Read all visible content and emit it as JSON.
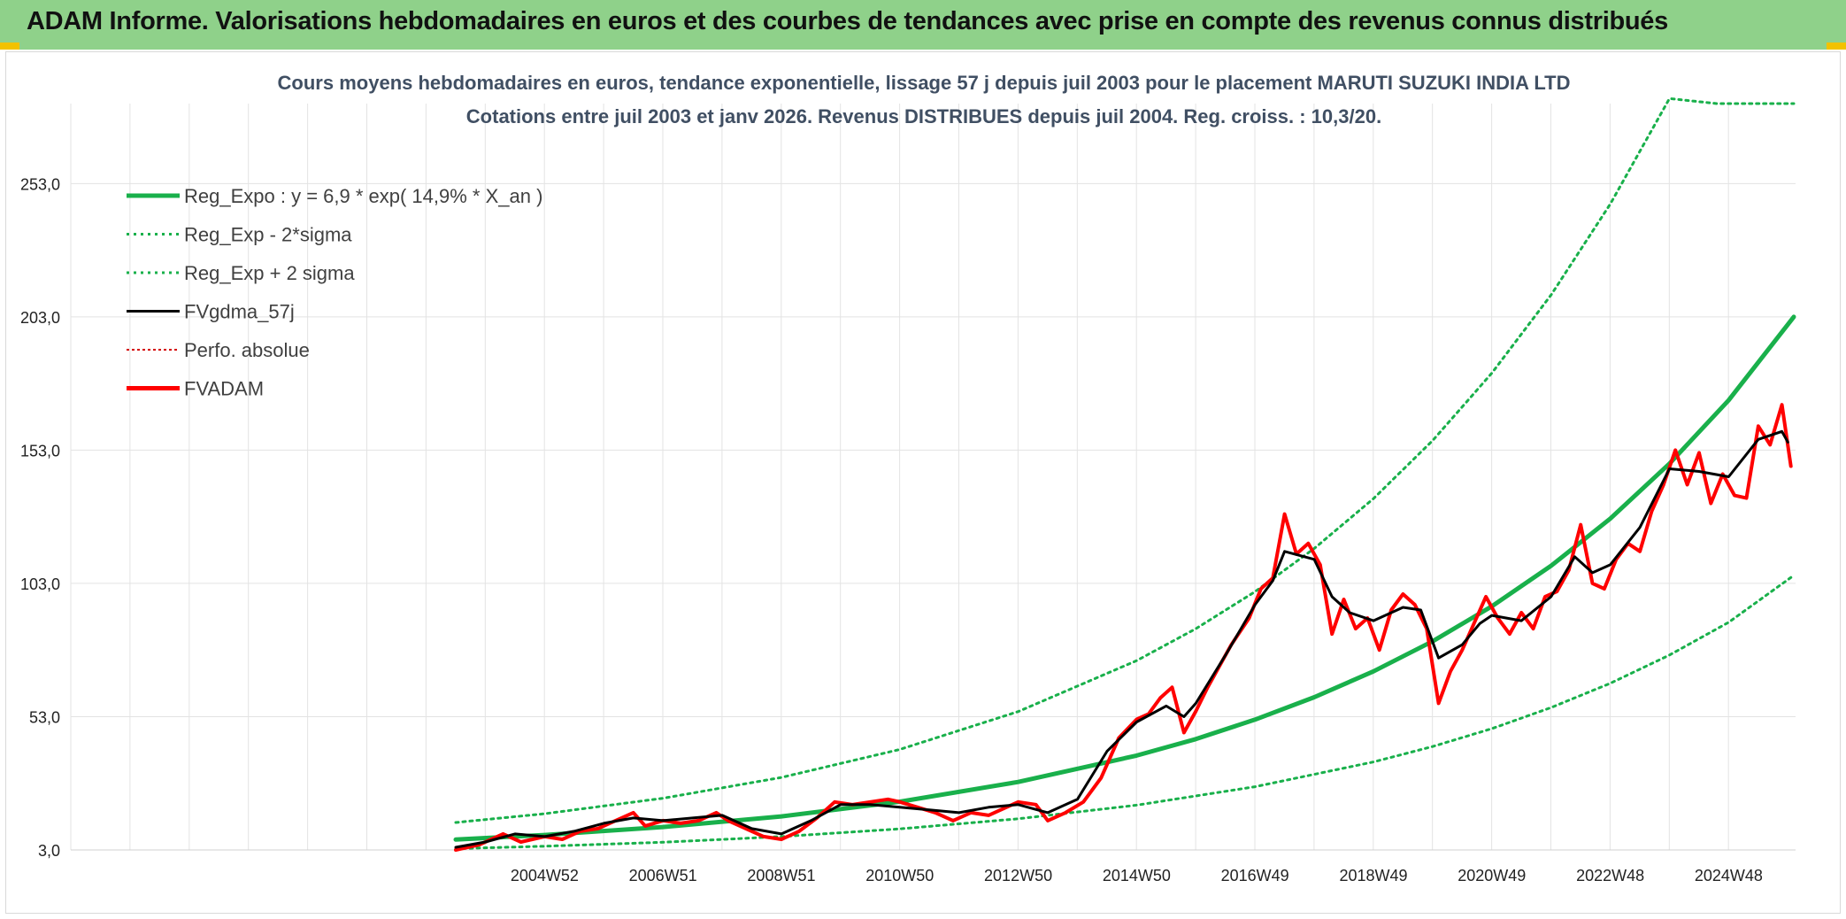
{
  "banner": {
    "title": "ADAM Informe. Valorisations hebdomadaires en euros et des courbes de tendances avec prise en compte des revenus connus distribués"
  },
  "chart_data": {
    "type": "line",
    "title": "Cours moyens hebdomadaires en euros, tendance exponentielle, lissage 57 j depuis juil 2003 pour le placement MARUTI SUZUKI INDIA LTD",
    "subtitle": "Cotations entre juil 2003 et janv 2026. Revenus DISTRIBUES depuis juil 2004. Reg. croiss. : 10,3/20.",
    "xlabel": "",
    "ylabel": "",
    "ylim": [
      3,
      283
    ],
    "y_ticks": [
      "3,0",
      "53,0",
      "103,0",
      "153,0",
      "203,0",
      "253,0"
    ],
    "y_tick_values": [
      3,
      53,
      103,
      153,
      203,
      253
    ],
    "x_ticks": [
      "2004W52",
      "2006W51",
      "2008W51",
      "2010W50",
      "2012W50",
      "2014W50",
      "2016W49",
      "2018W49",
      "2020W49",
      "2022W48",
      "2024W48"
    ],
    "x_tick_years": [
      2005.0,
      2007.0,
      2009.0,
      2011.0,
      2013.0,
      2015.0,
      2017.0,
      2019.0,
      2021.0,
      2023.0,
      2025.0
    ],
    "x_range": [
      2003.5,
      2026.1
    ],
    "grid": true,
    "legend_position": "top-left",
    "series": [
      {
        "name": "Reg_Expo : y = 6,9 * exp( 14,9% *  X_an )",
        "color": "#19b04b",
        "style": "solid-thick",
        "points": [
          [
            2003.5,
            6.9
          ],
          [
            2005,
            8.6
          ],
          [
            2007,
            11.6
          ],
          [
            2009,
            15.6
          ],
          [
            2011,
            21.1
          ],
          [
            2013,
            28.5
          ],
          [
            2015,
            38.4
          ],
          [
            2016,
            44.6
          ],
          [
            2017,
            51.9
          ],
          [
            2018,
            60.3
          ],
          [
            2019,
            70.0
          ],
          [
            2020,
            81.3
          ],
          [
            2021,
            94.4
          ],
          [
            2022,
            109.6
          ],
          [
            2023,
            127.3
          ],
          [
            2024,
            147.9
          ],
          [
            2025,
            171.7
          ],
          [
            2026.1,
            203.0
          ]
        ]
      },
      {
        "name": "Reg_Exp - 2*sigma",
        "color": "#19b04b",
        "style": "dotted",
        "points": [
          [
            2003.5,
            3.5
          ],
          [
            2005,
            4.4
          ],
          [
            2007,
            5.9
          ],
          [
            2009,
            8.0
          ],
          [
            2011,
            10.9
          ],
          [
            2013,
            14.7
          ],
          [
            2015,
            19.8
          ],
          [
            2017,
            26.7
          ],
          [
            2019,
            36.0
          ],
          [
            2020,
            41.8
          ],
          [
            2021,
            48.5
          ],
          [
            2022,
            56.4
          ],
          [
            2023,
            65.5
          ],
          [
            2024,
            76.1
          ],
          [
            2025,
            88.4
          ],
          [
            2026.1,
            106.0
          ]
        ]
      },
      {
        "name": "Reg_Exp + 2 sigma",
        "color": "#19b04b",
        "style": "dotted",
        "points": [
          [
            2003.5,
            13.3
          ],
          [
            2005,
            16.6
          ],
          [
            2007,
            22.4
          ],
          [
            2009,
            30.2
          ],
          [
            2011,
            40.7
          ],
          [
            2013,
            54.9
          ],
          [
            2015,
            74.0
          ],
          [
            2016,
            86.0
          ],
          [
            2017,
            99.9
          ],
          [
            2018,
            116.1
          ],
          [
            2019,
            134.8
          ],
          [
            2020,
            156.6
          ],
          [
            2021,
            181.9
          ],
          [
            2022,
            211.2
          ],
          [
            2023,
            245.3
          ],
          [
            2024,
            284.9
          ],
          [
            2024.8,
            283
          ],
          [
            2026.1,
            283
          ]
        ]
      },
      {
        "name": "FVgdma_57j",
        "color": "#000000",
        "style": "solid",
        "points": [
          [
            2003.5,
            4
          ],
          [
            2004,
            6
          ],
          [
            2004.5,
            9
          ],
          [
            2005,
            8
          ],
          [
            2005.5,
            10
          ],
          [
            2006,
            13
          ],
          [
            2006.5,
            15
          ],
          [
            2007,
            14
          ],
          [
            2007.5,
            15
          ],
          [
            2008,
            16
          ],
          [
            2008.5,
            11
          ],
          [
            2009,
            9
          ],
          [
            2009.5,
            14
          ],
          [
            2010,
            20
          ],
          [
            2010.5,
            20
          ],
          [
            2011,
            19
          ],
          [
            2011.5,
            18
          ],
          [
            2012,
            17
          ],
          [
            2012.5,
            19
          ],
          [
            2013,
            20
          ],
          [
            2013.5,
            17
          ],
          [
            2014,
            22
          ],
          [
            2014.5,
            40
          ],
          [
            2015,
            51
          ],
          [
            2015.5,
            57
          ],
          [
            2015.8,
            53
          ],
          [
            2016,
            58
          ],
          [
            2016.5,
            76
          ],
          [
            2017,
            95
          ],
          [
            2017.3,
            104
          ],
          [
            2017.5,
            115
          ],
          [
            2018,
            112
          ],
          [
            2018.3,
            98
          ],
          [
            2018.6,
            92
          ],
          [
            2019,
            89
          ],
          [
            2019.5,
            94
          ],
          [
            2019.8,
            93
          ],
          [
            2020.1,
            75
          ],
          [
            2020.5,
            80
          ],
          [
            2020.8,
            88
          ],
          [
            2021,
            91
          ],
          [
            2021.5,
            89
          ],
          [
            2022,
            98
          ],
          [
            2022.4,
            113
          ],
          [
            2022.7,
            107
          ],
          [
            2023,
            110
          ],
          [
            2023.5,
            124
          ],
          [
            2024,
            146
          ],
          [
            2024.5,
            145
          ],
          [
            2025,
            143
          ],
          [
            2025.5,
            157
          ],
          [
            2025.9,
            160
          ],
          [
            2026,
            156
          ]
        ]
      },
      {
        "name": "Perfo. absolue",
        "color": "#d40000",
        "style": "dotted",
        "points": []
      },
      {
        "name": "FVADAM",
        "color": "#ff0000",
        "style": "solid-thick",
        "points": [
          [
            2003.5,
            3
          ],
          [
            2003.9,
            5
          ],
          [
            2004.3,
            9
          ],
          [
            2004.6,
            6
          ],
          [
            2005,
            8
          ],
          [
            2005.3,
            7
          ],
          [
            2005.6,
            10
          ],
          [
            2005.9,
            11
          ],
          [
            2006.2,
            14
          ],
          [
            2006.5,
            17
          ],
          [
            2006.7,
            12
          ],
          [
            2007,
            14
          ],
          [
            2007.3,
            13
          ],
          [
            2007.6,
            14
          ],
          [
            2007.9,
            17
          ],
          [
            2008.1,
            14
          ],
          [
            2008.4,
            11
          ],
          [
            2008.7,
            8
          ],
          [
            2009,
            7
          ],
          [
            2009.3,
            10
          ],
          [
            2009.6,
            15
          ],
          [
            2009.9,
            21
          ],
          [
            2010.2,
            20
          ],
          [
            2010.5,
            21
          ],
          [
            2010.8,
            22
          ],
          [
            2011,
            21
          ],
          [
            2011.3,
            19
          ],
          [
            2011.6,
            17
          ],
          [
            2011.9,
            14
          ],
          [
            2012.2,
            17
          ],
          [
            2012.5,
            16
          ],
          [
            2012.8,
            19
          ],
          [
            2013,
            21
          ],
          [
            2013.3,
            20
          ],
          [
            2013.5,
            14
          ],
          [
            2013.8,
            17
          ],
          [
            2014.1,
            21
          ],
          [
            2014.4,
            30
          ],
          [
            2014.7,
            45
          ],
          [
            2015,
            52
          ],
          [
            2015.2,
            54
          ],
          [
            2015.4,
            60
          ],
          [
            2015.6,
            64
          ],
          [
            2015.8,
            47
          ],
          [
            2016,
            55
          ],
          [
            2016.2,
            64
          ],
          [
            2016.4,
            72
          ],
          [
            2016.6,
            80
          ],
          [
            2016.9,
            90
          ],
          [
            2017.1,
            101
          ],
          [
            2017.3,
            105
          ],
          [
            2017.5,
            129
          ],
          [
            2017.7,
            114
          ],
          [
            2017.9,
            118
          ],
          [
            2018.1,
            110
          ],
          [
            2018.3,
            84
          ],
          [
            2018.5,
            97
          ],
          [
            2018.7,
            86
          ],
          [
            2018.9,
            90
          ],
          [
            2019.1,
            78
          ],
          [
            2019.3,
            93
          ],
          [
            2019.5,
            99
          ],
          [
            2019.7,
            95
          ],
          [
            2019.9,
            86
          ],
          [
            2020.1,
            58
          ],
          [
            2020.3,
            70
          ],
          [
            2020.5,
            78
          ],
          [
            2020.7,
            88
          ],
          [
            2020.9,
            98
          ],
          [
            2021.1,
            90
          ],
          [
            2021.3,
            84
          ],
          [
            2021.5,
            92
          ],
          [
            2021.7,
            86
          ],
          [
            2021.9,
            98
          ],
          [
            2022.1,
            100
          ],
          [
            2022.3,
            108
          ],
          [
            2022.5,
            125
          ],
          [
            2022.7,
            103
          ],
          [
            2022.9,
            101
          ],
          [
            2023.1,
            112
          ],
          [
            2023.3,
            118
          ],
          [
            2023.5,
            115
          ],
          [
            2023.7,
            130
          ],
          [
            2023.9,
            140
          ],
          [
            2024.1,
            153
          ],
          [
            2024.3,
            140
          ],
          [
            2024.5,
            152
          ],
          [
            2024.7,
            133
          ],
          [
            2024.9,
            144
          ],
          [
            2025.1,
            136
          ],
          [
            2025.3,
            135
          ],
          [
            2025.5,
            162
          ],
          [
            2025.7,
            155
          ],
          [
            2025.9,
            170
          ],
          [
            2026.05,
            147
          ]
        ]
      }
    ]
  }
}
